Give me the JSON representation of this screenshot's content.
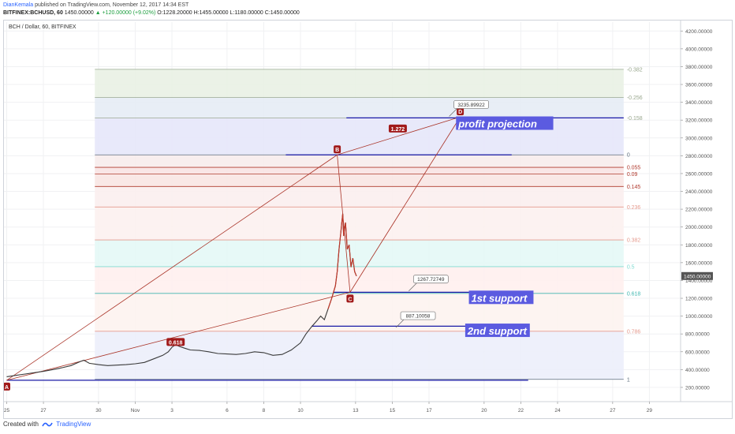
{
  "header": {
    "author": "DianKemala",
    "published": " published on TradingView.com, November 12, 2017 14:34 EST",
    "ohlc_line": {
      "symbol": "BITFINEX:BCHUSD, 60",
      "price": " 1450.00000 ",
      "change": "▲ +120.00000 (+9.02%)",
      "open": " O:1228.20000",
      "high": " H:1455.00000",
      "low": " L:1180.00000",
      "close": " C:1450.00000"
    }
  },
  "chart_title": "BCH / Dollar, 60, BITFINEX",
  "footer": {
    "created": "Created with",
    "brand": "TradingView"
  },
  "colors": {
    "accent": "#2962ff",
    "up": "#1b9e3e",
    "fib_line": "#c0392b",
    "hline": "#1a1aa6",
    "label_bg": "#5b5be0",
    "marker": "#a11a1a"
  },
  "chart_data": {
    "type": "line",
    "x_unit": "day index from Oct 25 2017",
    "x_ticks": [
      {
        "x": 0,
        "label": "25"
      },
      {
        "x": 2,
        "label": "27"
      },
      {
        "x": 5,
        "label": "30"
      },
      {
        "x": 7,
        "label": "Nov"
      },
      {
        "x": 9,
        "label": "3"
      },
      {
        "x": 12,
        "label": "6"
      },
      {
        "x": 14,
        "label": "8"
      },
      {
        "x": 16,
        "label": "10"
      },
      {
        "x": 19,
        "label": "13"
      },
      {
        "x": 21,
        "label": "15"
      },
      {
        "x": 23,
        "label": "17"
      },
      {
        "x": 26,
        "label": "20"
      },
      {
        "x": 28,
        "label": "22"
      },
      {
        "x": 30,
        "label": "24"
      },
      {
        "x": 33,
        "label": "27"
      },
      {
        "x": 35,
        "label": "29"
      }
    ],
    "y_ticks": [
      200,
      400,
      600,
      800,
      1000,
      1200,
      1400,
      1600,
      1800,
      2000,
      2200,
      2400,
      2600,
      2800,
      3000,
      3200,
      3400,
      3600,
      3800,
      4000,
      4200
    ],
    "y_tick_labels": [
      "200.00000",
      "400.00000",
      "600.00000",
      "800.00000",
      "1000.00000",
      "1200.00000",
      "1400.00000",
      "1600.00000",
      "1800.00000",
      "2000.00000",
      "2200.00000",
      "2400.00000",
      "2600.00000",
      "2800.00000",
      "3000.00000",
      "3200.00000",
      "3400.00000",
      "3600.00000",
      "3800.00000",
      "4000.00000",
      "4200.00000"
    ],
    "ylim": [
      40,
      4300
    ],
    "xlim": [
      -0.15,
      36.7
    ],
    "current_price": {
      "value": 1450,
      "label": "1450.00000"
    },
    "price_series": [
      [
        0,
        320
      ],
      [
        0.5,
        335
      ],
      [
        1,
        350
      ],
      [
        1.5,
        365
      ],
      [
        2,
        380
      ],
      [
        2.5,
        400
      ],
      [
        3,
        420
      ],
      [
        3.5,
        445
      ],
      [
        4,
        490
      ],
      [
        4.2,
        505
      ],
      [
        4.5,
        470
      ],
      [
        5,
        455
      ],
      [
        5.5,
        445
      ],
      [
        6,
        450
      ],
      [
        6.5,
        455
      ],
      [
        7,
        465
      ],
      [
        7.5,
        480
      ],
      [
        8,
        520
      ],
      [
        8.5,
        560
      ],
      [
        8.8,
        600
      ],
      [
        9,
        650
      ],
      [
        9.2,
        680
      ],
      [
        9.4,
        660
      ],
      [
        9.7,
        640
      ],
      [
        10,
        620
      ],
      [
        10.5,
        615
      ],
      [
        11,
        600
      ],
      [
        11.5,
        580
      ],
      [
        12,
        575
      ],
      [
        12.5,
        570
      ],
      [
        13,
        580
      ],
      [
        13.5,
        600
      ],
      [
        14,
        590
      ],
      [
        14.5,
        560
      ],
      [
        15,
        570
      ],
      [
        15.5,
        620
      ],
      [
        16,
        700
      ],
      [
        16.3,
        800
      ],
      [
        16.6,
        880
      ],
      [
        16.9,
        950
      ],
      [
        17.1,
        1000
      ],
      [
        17.3,
        960
      ],
      [
        17.5,
        1080
      ],
      [
        17.7,
        1200
      ],
      [
        17.9,
        1340
      ],
      [
        18,
        1500
      ],
      [
        18.1,
        1750
      ],
      [
        18.2,
        1950
      ],
      [
        18.25,
        2050
      ],
      [
        18.3,
        2150
      ],
      [
        18.35,
        1900
      ],
      [
        18.45,
        2050
      ],
      [
        18.55,
        1750
      ],
      [
        18.65,
        1800
      ],
      [
        18.75,
        1550
      ],
      [
        18.85,
        1650
      ],
      [
        18.95,
        1500
      ],
      [
        19.05,
        1450
      ]
    ],
    "harmonic_points": [
      {
        "label": "A",
        "x": 0,
        "y": 280
      },
      {
        "label": "B",
        "x": 18.0,
        "y": 2810
      },
      {
        "label": "C",
        "x": 18.7,
        "y": 1267.73
      },
      {
        "label": "D",
        "x": 24.7,
        "y": 3235.89922
      }
    ],
    "ratio_labels": [
      {
        "text": "0.618",
        "x": 9.2,
        "y": 710
      },
      {
        "text": "1.272",
        "x": 21.3,
        "y": 3105
      }
    ],
    "fib_retracement": {
      "x_start": 4.8,
      "x_end": 33.6,
      "levels": [
        {
          "ratio": "-0.382",
          "price": 3770
        },
        {
          "ratio": "-0.256",
          "price": 3455
        },
        {
          "ratio": "-0.158",
          "price": 3225
        },
        {
          "ratio": "0",
          "price": 2810
        },
        {
          "ratio": "0.055",
          "price": 2670
        },
        {
          "ratio": "0.09",
          "price": 2595
        },
        {
          "ratio": "0.145",
          "price": 2455
        },
        {
          "ratio": "0.236",
          "price": 2225
        },
        {
          "ratio": "0.382",
          "price": 1855
        },
        {
          "ratio": "0.5",
          "price": 1555
        },
        {
          "ratio": "0.618",
          "price": 1255
        },
        {
          "ratio": "0.786",
          "price": 830
        },
        {
          "ratio": "1",
          "price": 290
        }
      ]
    },
    "horizontal_lines": [
      {
        "name": "profit",
        "price": 3225,
        "x1": 18.5,
        "x2": 33.6
      },
      {
        "name": "d-level",
        "price": 2810,
        "x1": 15.2,
        "x2": 27.5
      },
      {
        "name": "support1",
        "price": 1267.73,
        "x1": 17.8,
        "x2": 28.4
      },
      {
        "name": "support2",
        "price": 887.10058,
        "x1": 16.6,
        "x2": 28.4
      },
      {
        "name": "base",
        "price": 280,
        "x1": 0,
        "x2": 28.4
      }
    ],
    "value_callouts": [
      {
        "text": "3235.89922",
        "x": 25.3,
        "y": 3375
      },
      {
        "text": "1267.72749",
        "x": 23.1,
        "y": 1415
      },
      {
        "text": "887.10058",
        "x": 22.4,
        "y": 1005
      }
    ],
    "text_labels": [
      {
        "text": "profit projection",
        "x": 24.6,
        "y": 3135
      },
      {
        "text": "1st support",
        "x": 25.3,
        "y": 1180
      },
      {
        "text": "2nd support",
        "x": 25.1,
        "y": 810
      }
    ]
  }
}
